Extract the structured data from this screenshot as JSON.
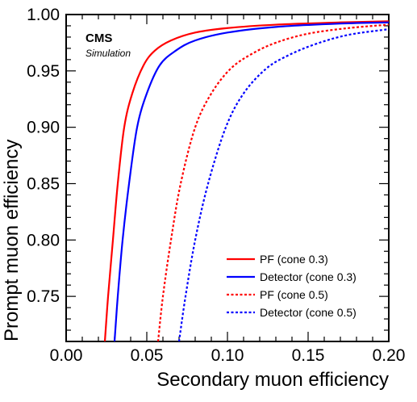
{
  "chart_data": {
    "type": "line",
    "xlabel": "Secondary muon efficiency",
    "ylabel": "Prompt muon efficiency",
    "xlim": [
      0.0,
      0.2
    ],
    "ylim": [
      0.71,
      1.0
    ],
    "x_ticks": [
      "0.00",
      "0.05",
      "0.10",
      "0.15",
      "0.20"
    ],
    "y_ticks": [
      "0.75",
      "0.80",
      "0.85",
      "0.90",
      "0.95",
      "1.00"
    ],
    "annotation": {
      "experiment": "CMS",
      "subtitle": "Simulation"
    },
    "legend_position": "bottom-right",
    "series": [
      {
        "name": "PF (cone 0.3)",
        "color": "#ff0000",
        "dash": "solid",
        "points": [
          [
            0.024,
            0.71
          ],
          [
            0.026,
            0.75
          ],
          [
            0.029,
            0.8
          ],
          [
            0.032,
            0.85
          ],
          [
            0.036,
            0.9
          ],
          [
            0.041,
            0.93
          ],
          [
            0.048,
            0.955
          ],
          [
            0.055,
            0.968
          ],
          [
            0.065,
            0.977
          ],
          [
            0.08,
            0.984
          ],
          [
            0.1,
            0.988
          ],
          [
            0.13,
            0.991
          ],
          [
            0.17,
            0.993
          ],
          [
            0.2,
            0.994
          ]
        ]
      },
      {
        "name": "Detector (cone 0.3)",
        "color": "#0000ff",
        "dash": "solid",
        "points": [
          [
            0.03,
            0.71
          ],
          [
            0.032,
            0.75
          ],
          [
            0.035,
            0.8
          ],
          [
            0.039,
            0.85
          ],
          [
            0.044,
            0.9
          ],
          [
            0.05,
            0.93
          ],
          [
            0.058,
            0.955
          ],
          [
            0.068,
            0.968
          ],
          [
            0.08,
            0.977
          ],
          [
            0.1,
            0.984
          ],
          [
            0.13,
            0.989
          ],
          [
            0.17,
            0.992
          ],
          [
            0.2,
            0.993
          ]
        ]
      },
      {
        "name": "PF (cone 0.5)",
        "color": "#ff0000",
        "dash": "dotted",
        "points": [
          [
            0.057,
            0.71
          ],
          [
            0.06,
            0.75
          ],
          [
            0.065,
            0.8
          ],
          [
            0.071,
            0.85
          ],
          [
            0.08,
            0.9
          ],
          [
            0.09,
            0.93
          ],
          [
            0.102,
            0.952
          ],
          [
            0.115,
            0.965
          ],
          [
            0.13,
            0.975
          ],
          [
            0.15,
            0.983
          ],
          [
            0.175,
            0.988
          ],
          [
            0.2,
            0.991
          ]
        ]
      },
      {
        "name": "Detector (cone 0.5)",
        "color": "#0000ff",
        "dash": "dotted",
        "points": [
          [
            0.07,
            0.71
          ],
          [
            0.074,
            0.75
          ],
          [
            0.08,
            0.8
          ],
          [
            0.088,
            0.85
          ],
          [
            0.099,
            0.9
          ],
          [
            0.11,
            0.93
          ],
          [
            0.124,
            0.952
          ],
          [
            0.138,
            0.964
          ],
          [
            0.155,
            0.974
          ],
          [
            0.175,
            0.982
          ],
          [
            0.2,
            0.987
          ]
        ]
      }
    ]
  }
}
